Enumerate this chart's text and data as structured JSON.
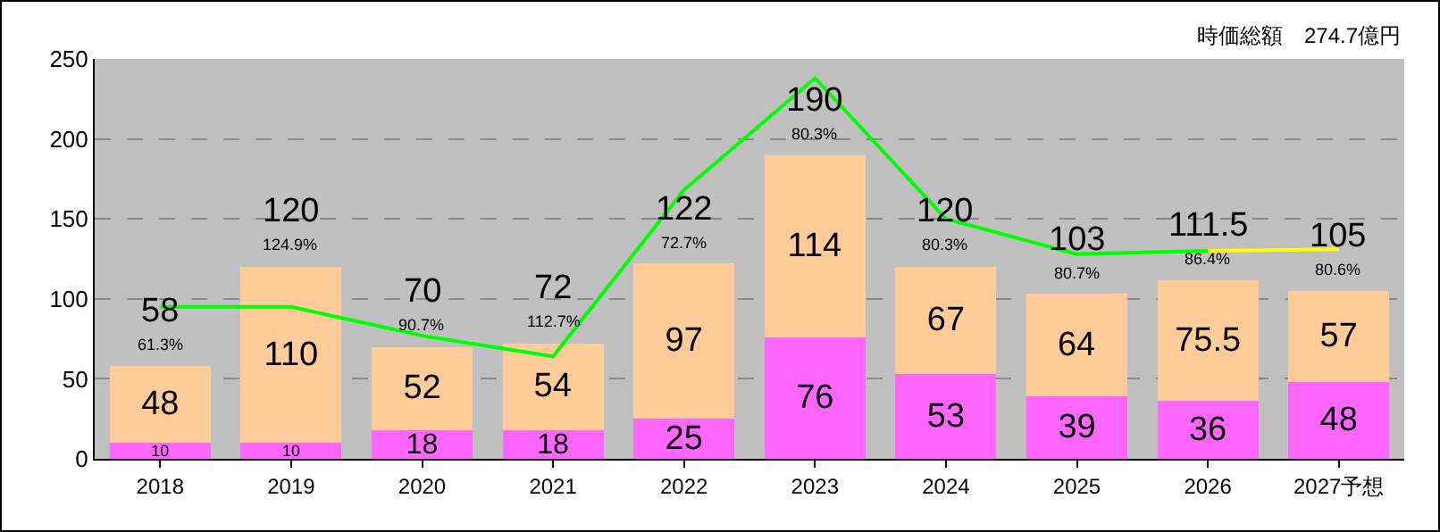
{
  "chart_data": {
    "type": "bar",
    "stacked": true,
    "categories": [
      "2018",
      "2019",
      "2020",
      "2021",
      "2022",
      "2023",
      "2024",
      "2025",
      "2026",
      "2027予想"
    ],
    "series": [
      {
        "color": "#ff66ff",
        "values": [
          10,
          10,
          18,
          18,
          25,
          76,
          53,
          39,
          36,
          48
        ],
        "value_labels": [
          "10",
          "10",
          "18",
          "18",
          "25",
          "76",
          "53",
          "39",
          "36",
          "48"
        ]
      },
      {
        "color": "#ffcc99",
        "values": [
          48,
          110,
          52,
          54,
          97,
          114,
          67,
          64,
          75.5,
          57
        ],
        "value_labels": [
          "48",
          "110",
          "52",
          "54",
          "97",
          "114",
          "67",
          "64",
          "75.5",
          "57"
        ]
      },
      {
        "type": "line",
        "color": "#00ff00",
        "values": [
          95,
          95,
          77,
          64,
          168,
          238,
          150,
          128,
          130,
          null
        ]
      },
      {
        "type": "line",
        "color": "#ffff00",
        "values": [
          null,
          null,
          null,
          null,
          null,
          null,
          null,
          null,
          130,
          131
        ]
      }
    ],
    "totals": [
      "58",
      "120",
      "70",
      "72",
      "122",
      "190",
      "120",
      "103",
      "111.5",
      "105"
    ],
    "annotations": [
      "時価総額　274.7億円",
      "61.3%",
      "124.9%",
      "90.7%",
      "112.7%",
      "72.7%",
      "80.3%",
      "80.3%",
      "80.7%",
      "86.4%",
      "80.6%"
    ],
    "ylim": [
      0,
      250
    ],
    "yticks": [
      0,
      50,
      100,
      150,
      200,
      250
    ],
    "grid": "y"
  }
}
